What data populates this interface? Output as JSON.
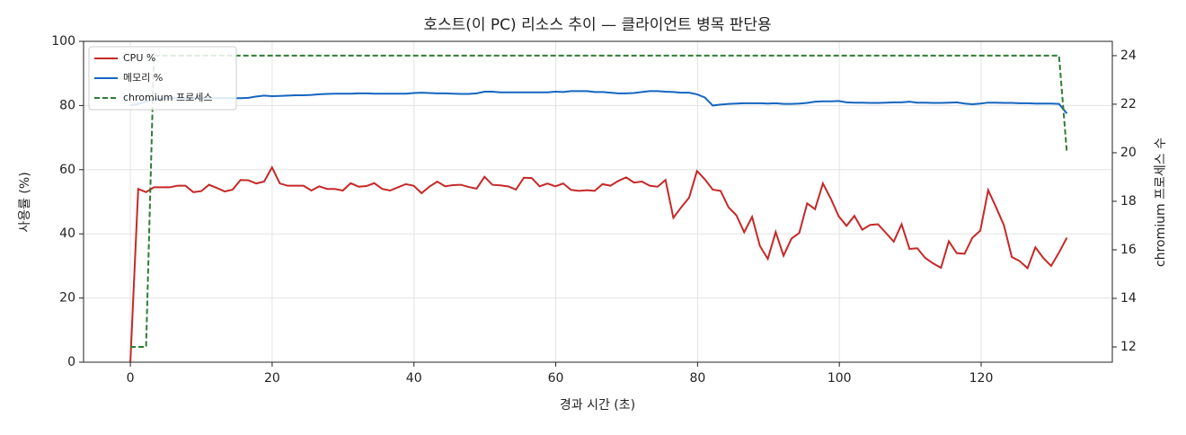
{
  "chart_data": {
    "type": "line",
    "title": "호스트(이 PC) 리소스 추이 — 클라이언트 병목 판단용",
    "x_label": "경과 시간 (초)",
    "y_label": "사용률 (%)",
    "y2_label": "chromium 프로세스 수",
    "x": [
      0,
      1.11,
      2.22,
      3.33,
      4.44,
      5.55,
      6.66,
      7.77,
      8.88,
      9.99,
      11.1,
      12.21,
      13.32,
      14.43,
      15.54,
      16.65,
      17.76,
      18.87,
      19.98,
      21.09,
      22.2,
      23.31,
      24.42,
      25.53,
      26.64,
      27.75,
      28.86,
      29.97,
      31.08,
      32.19,
      33.3,
      34.41,
      35.52,
      36.63,
      37.74,
      38.85,
      39.96,
      41.07,
      42.18,
      43.29,
      44.4,
      45.51,
      46.62,
      47.73,
      48.84,
      49.95,
      51.06,
      52.17,
      53.28,
      54.39,
      55.5,
      56.61,
      57.72,
      58.83,
      59.94,
      61.05,
      62.16,
      63.27,
      64.38,
      65.49,
      66.6,
      67.71,
      68.82,
      69.93,
      71.04,
      72.15,
      73.26,
      74.37,
      75.48,
      76.59,
      77.7,
      78.81,
      79.92,
      81.03,
      82.14,
      83.25,
      84.36,
      85.47,
      86.58,
      87.69,
      88.8,
      89.91,
      91.02,
      92.13,
      93.24,
      94.35,
      95.46,
      96.57,
      97.68,
      98.79,
      99.9,
      101.01,
      102.12,
      103.23,
      104.34,
      105.45,
      106.56,
      107.67,
      108.78,
      109.89,
      111,
      112.11,
      113.22,
      114.33,
      115.44,
      116.55,
      117.66,
      118.77,
      119.88,
      120.99,
      122.1,
      123.21,
      124.32,
      125.43,
      126.54,
      127.65,
      128.76,
      129.87,
      130.98,
      132.09
    ],
    "series": [
      {
        "name": "CPU %",
        "color": "#c62828",
        "linestyle": "solid",
        "values": [
          0,
          54,
          53,
          54.5,
          54.5,
          54.5,
          55,
          55,
          53,
          53.3,
          55.3,
          54.3,
          53.2,
          53.8,
          56.8,
          56.7,
          55.7,
          56.3,
          60.7,
          55.7,
          55,
          55,
          55,
          53.5,
          54.8,
          54,
          54,
          53.5,
          55.8,
          54.7,
          54.9,
          55.8,
          54,
          53.5,
          54.5,
          55.5,
          55,
          52.7,
          54.7,
          56.3,
          54.8,
          55.2,
          55.3,
          54.6,
          54.1,
          57.8,
          55.3,
          55.1,
          54.8,
          53.8,
          57.5,
          57.4,
          54.8,
          55.7,
          54.8,
          55.7,
          53.7,
          53.4,
          53.6,
          53.4,
          55.5,
          55,
          56.5,
          57.6,
          56,
          56.3,
          55,
          54.7,
          56.8,
          45,
          48.3,
          51.3,
          59.6,
          57,
          53.8,
          53.4,
          48.3,
          45.8,
          40.5,
          45.3,
          36.2,
          32.2,
          40.6,
          33.2,
          38.5,
          40.3,
          49.5,
          47.7,
          55.7,
          51,
          45.5,
          42.5,
          45.6,
          41.3,
          42.8,
          43,
          40.3,
          37.6,
          43,
          35.3,
          35.5,
          32.5,
          30.8,
          29.4,
          37.7,
          34,
          33.8,
          38.8,
          41,
          53.6,
          48.3,
          42.7,
          32.8,
          31.5,
          29.3,
          35.8,
          32.5,
          30,
          34.2,
          38.8
        ]
      },
      {
        "name": "메모리 %",
        "color": "#1565c0",
        "linestyle": "solid",
        "values": [
          80,
          80.5,
          81.2,
          82,
          82.2,
          82.3,
          82.3,
          82.3,
          82.3,
          82.3,
          82.3,
          82.3,
          82.3,
          82.3,
          82.3,
          82.4,
          82.8,
          83.1,
          82.9,
          83,
          83.1,
          83.2,
          83.2,
          83.3,
          83.5,
          83.6,
          83.7,
          83.7,
          83.7,
          83.8,
          83.8,
          83.7,
          83.7,
          83.7,
          83.7,
          83.7,
          83.9,
          84,
          83.9,
          83.8,
          83.8,
          83.7,
          83.6,
          83.6,
          83.8,
          84.3,
          84.3,
          84.1,
          84.1,
          84.1,
          84.1,
          84.1,
          84.1,
          84.1,
          84.3,
          84.2,
          84.5,
          84.5,
          84.5,
          84.2,
          84.2,
          84,
          83.8,
          83.8,
          83.9,
          84.2,
          84.5,
          84.5,
          84.3,
          84.2,
          84,
          84,
          83.5,
          82.5,
          80,
          80.3,
          80.5,
          80.6,
          80.7,
          80.7,
          80.7,
          80.6,
          80.7,
          80.5,
          80.5,
          80.6,
          80.8,
          81.2,
          81.3,
          81.3,
          81.4,
          81,
          80.9,
          80.9,
          80.8,
          80.8,
          80.9,
          81,
          81,
          81.2,
          80.9,
          80.9,
          80.8,
          80.8,
          80.9,
          81,
          80.6,
          80.4,
          80.6,
          80.9,
          80.9,
          80.8,
          80.8,
          80.7,
          80.7,
          80.6,
          80.6,
          80.6,
          80.5,
          77.5
        ]
      },
      {
        "name": "chromium 프로세스",
        "color": "#2e7d32",
        "linestyle": "dashed",
        "axis": "y2",
        "values": [
          12,
          12,
          12,
          24,
          24,
          24,
          24,
          24,
          24,
          24,
          24,
          24,
          24,
          24,
          24,
          24,
          24,
          24,
          24,
          24,
          24,
          24,
          24,
          24,
          24,
          24,
          24,
          24,
          24,
          24,
          24,
          24,
          24,
          24,
          24,
          24,
          24,
          24,
          24,
          24,
          24,
          24,
          24,
          24,
          24,
          24,
          24,
          24,
          24,
          24,
          24,
          24,
          24,
          24,
          24,
          24,
          24,
          24,
          24,
          24,
          24,
          24,
          24,
          24,
          24,
          24,
          24,
          24,
          24,
          24,
          24,
          24,
          24,
          24,
          24,
          24,
          24,
          24,
          24,
          24,
          24,
          24,
          24,
          24,
          24,
          24,
          24,
          24,
          24,
          24,
          24,
          24,
          24,
          24,
          24,
          24,
          24,
          24,
          24,
          24,
          24,
          24,
          24,
          24,
          24,
          24,
          24,
          24,
          24,
          24,
          24,
          24,
          24,
          24,
          24,
          24,
          24,
          24,
          24,
          20
        ]
      }
    ],
    "xlim": [
      -6.6,
      138.5
    ],
    "xticks": [
      0,
      20,
      40,
      60,
      80,
      100,
      120
    ],
    "ylim": [
      0,
      100
    ],
    "yticks": [
      0,
      20,
      40,
      60,
      80,
      100
    ],
    "y2lim": [
      11.37,
      24.59
    ],
    "y2ticks": [
      12,
      14,
      16,
      18,
      20,
      22,
      24
    ],
    "grid": true,
    "legend": "upper left"
  }
}
